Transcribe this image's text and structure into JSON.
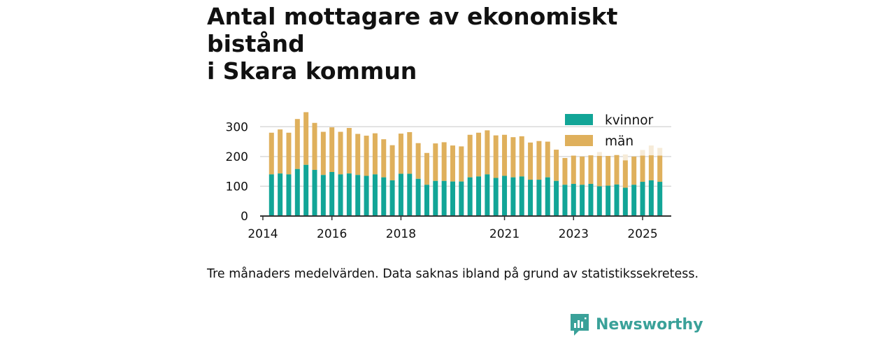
{
  "title_lines": [
    "Antal mottagare av ekonomiskt bistånd",
    "i Skara kommun"
  ],
  "note": "Tre månaders medelvärden. Data saknas ibland på grund av statistikssekretess.",
  "brand": {
    "name": "Newsworthy"
  },
  "colors": {
    "women": "#12a597",
    "men": "#dfb05c",
    "men_faded": "#f6ebd8",
    "grid": "#d9d9d9",
    "axis": "#333333",
    "text": "#111111",
    "brand": "#3aa199"
  },
  "chart_data": {
    "type": "bar",
    "stacked": true,
    "title": "Antal mottagare av ekonomiskt bistånd i Skara kommun",
    "xlabel": "",
    "ylabel": "",
    "ylim": [
      0,
      350
    ],
    "yticks": [
      0,
      100,
      200,
      300
    ],
    "xlim": [
      2013.92,
      2025.83
    ],
    "xticks": [
      2014,
      2016,
      2018,
      2021,
      2023,
      2025
    ],
    "grid": true,
    "legend_position": "top-right",
    "x": [
      2014.25,
      2014.5,
      2014.75,
      2015.0,
      2015.25,
      2015.5,
      2015.75,
      2016.0,
      2016.25,
      2016.5,
      2016.75,
      2017.0,
      2017.25,
      2017.5,
      2017.75,
      2018.0,
      2018.25,
      2018.5,
      2018.75,
      2019.0,
      2019.25,
      2019.5,
      2019.75,
      2020.0,
      2020.25,
      2020.5,
      2020.75,
      2021.0,
      2021.25,
      2021.5,
      2021.75,
      2022.0,
      2022.25,
      2022.5,
      2022.75,
      2023.0,
      2023.25,
      2023.5,
      2023.75,
      2024.0,
      2024.25,
      2024.5,
      2024.75,
      2025.0,
      2025.25,
      2025.5
    ],
    "series": [
      {
        "name": "kvinnor",
        "values": [
          140,
          143,
          140,
          158,
          172,
          155,
          138,
          148,
          140,
          143,
          138,
          135,
          140,
          130,
          120,
          142,
          142,
          125,
          105,
          118,
          118,
          116,
          116,
          130,
          133,
          140,
          128,
          135,
          130,
          133,
          122,
          122,
          130,
          118,
          105,
          108,
          105,
          108,
          100,
          102,
          106,
          95,
          105,
          115,
          120,
          115
        ]
      },
      {
        "name": "män",
        "values": [
          140,
          148,
          140,
          168,
          177,
          158,
          145,
          150,
          143,
          153,
          138,
          135,
          138,
          128,
          118,
          135,
          140,
          120,
          107,
          126,
          130,
          121,
          118,
          143,
          147,
          148,
          143,
          138,
          135,
          135,
          125,
          130,
          120,
          105,
          90,
          95,
          95,
          96,
          102,
          100,
          99,
          92,
          95,
          88,
          84,
          88
        ]
      }
    ],
    "faded_totals": [
      {
        "x": 2023.75,
        "value": 215
      },
      {
        "x": 2024.5,
        "value": 207
      },
      {
        "x": 2025.0,
        "value": 222
      },
      {
        "x": 2025.25,
        "value": 237
      },
      {
        "x": 2025.5,
        "value": 229
      }
    ]
  }
}
